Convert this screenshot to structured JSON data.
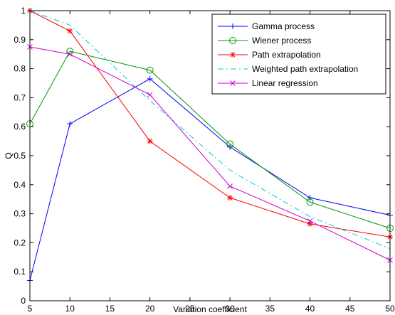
{
  "chart_data": {
    "type": "line",
    "title": "",
    "xlabel": "Variation coefficient",
    "ylabel": "Q",
    "x": [
      5,
      10,
      20,
      30,
      40,
      50
    ],
    "xlim": [
      5,
      50
    ],
    "ylim": [
      0,
      1
    ],
    "xticks": [
      "5",
      "10",
      "15",
      "20",
      "25",
      "30",
      "35",
      "40",
      "45",
      "50"
    ],
    "yticks": [
      "0",
      "0.1",
      "0.2",
      "0.3",
      "0.4",
      "0.5",
      "0.6",
      "0.7",
      "0.8",
      "0.9",
      "1"
    ],
    "grid": false,
    "legend_position": "top-right",
    "series": [
      {
        "name": "Gamma process",
        "values": [
          0.07,
          0.61,
          0.765,
          0.53,
          0.355,
          0.295
        ],
        "color": "#0000ff",
        "marker": "plus",
        "dash": "solid"
      },
      {
        "name": "Wiener process",
        "values": [
          0.61,
          0.86,
          0.795,
          0.54,
          0.34,
          0.25
        ],
        "color": "#009900",
        "marker": "circle",
        "dash": "solid"
      },
      {
        "name": "Path extrapolation",
        "values": [
          1.0,
          0.93,
          0.55,
          0.355,
          0.265,
          0.22
        ],
        "color": "#ff0000",
        "marker": "star",
        "dash": "solid"
      },
      {
        "name": "Weighted path extrapolation",
        "values": [
          1.0,
          0.95,
          0.69,
          0.45,
          0.29,
          0.18
        ],
        "color": "#00cccc",
        "marker": "none",
        "dash": "dashdot"
      },
      {
        "name": "Linear regression",
        "values": [
          0.875,
          0.85,
          0.71,
          0.395,
          0.275,
          0.14
        ],
        "color": "#cc00cc",
        "marker": "x",
        "dash": "solid"
      }
    ]
  }
}
